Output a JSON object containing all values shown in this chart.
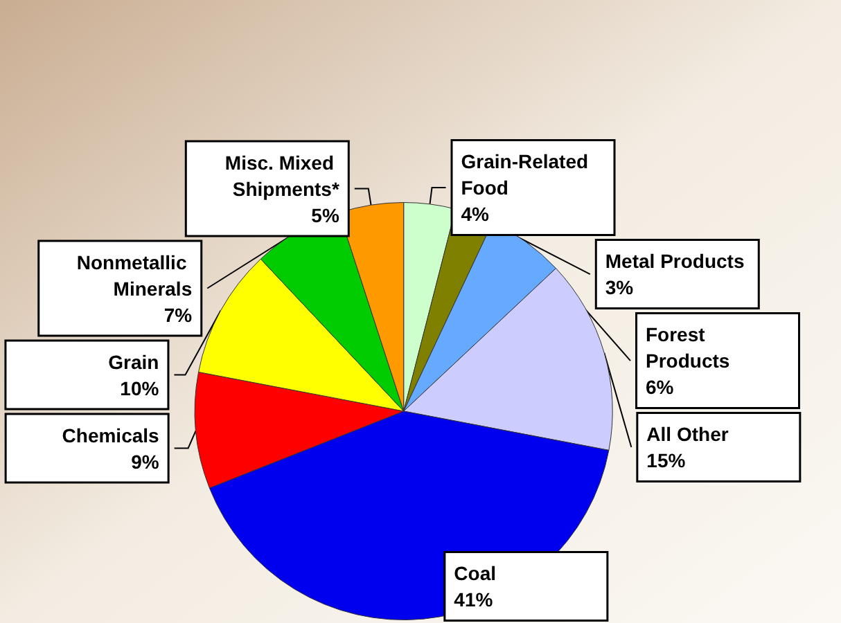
{
  "chart_data": {
    "type": "pie",
    "categories": [
      "Grain-Related Food",
      "Metal Products",
      "Forest Products",
      "All Other",
      "Coal",
      "Chemicals",
      "Grain",
      "Nonmetallic Minerals",
      "Misc. Mixed Shipments*"
    ],
    "values": [
      4,
      3,
      6,
      15,
      41,
      9,
      10,
      7,
      5
    ],
    "colors": [
      "#ccffcc",
      "#808000",
      "#66aaff",
      "#ccccff",
      "#0000ee",
      "#ff0000",
      "#ffff00",
      "#00cc00",
      "#ff9900"
    ],
    "value_labels": [
      "4%",
      "3%",
      "6%",
      "15%",
      "41%",
      "9%",
      "10%",
      "7%",
      "5%"
    ],
    "legend": false
  }
}
